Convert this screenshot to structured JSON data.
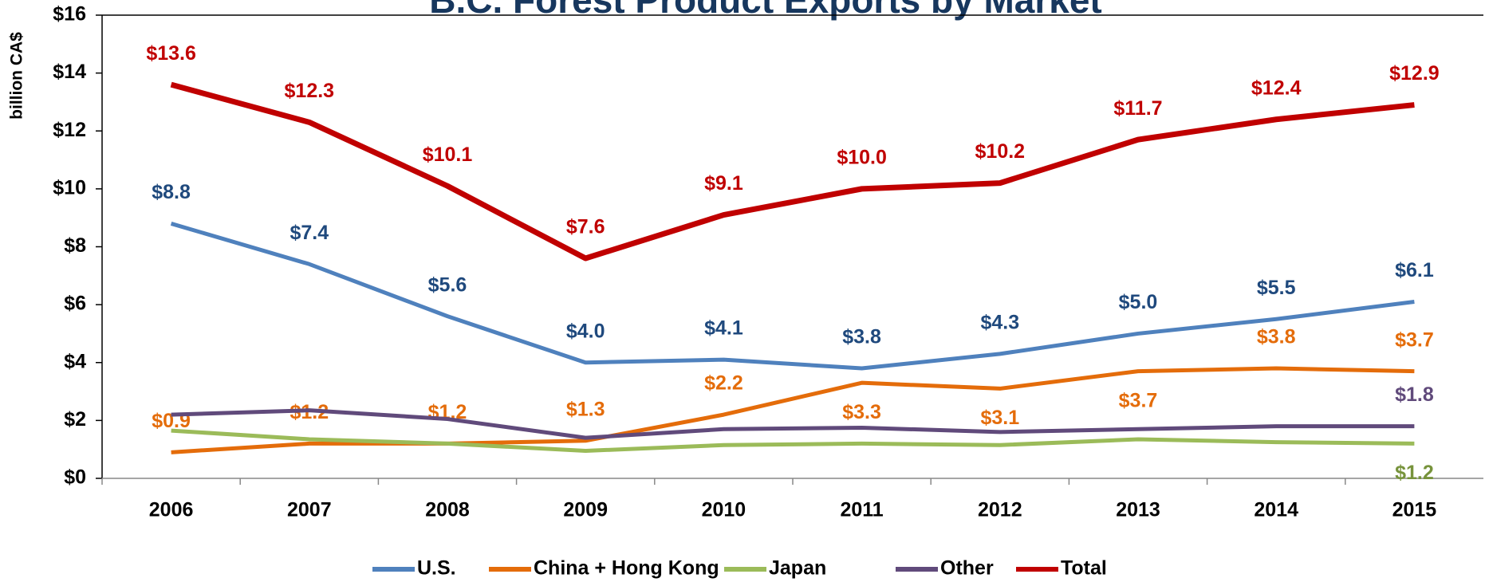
{
  "chart_data": {
    "type": "line",
    "title": "B.C. Forest Product Exports by Market",
    "y_label": "billion CA$",
    "categories": [
      "2006",
      "2007",
      "2008",
      "2009",
      "2010",
      "2011",
      "2012",
      "2013",
      "2014",
      "2015"
    ],
    "ylim": [
      0,
      16
    ],
    "yticks": [
      {
        "value": 0,
        "label": "$0"
      },
      {
        "value": 2,
        "label": "$2"
      },
      {
        "value": 4,
        "label": "$4"
      },
      {
        "value": 6,
        "label": "$6"
      },
      {
        "value": 8,
        "label": "$8"
      },
      {
        "value": 10,
        "label": "$10"
      },
      {
        "value": 12,
        "label": "$12"
      },
      {
        "value": 14,
        "label": "$14"
      },
      {
        "value": 16,
        "label": "$16"
      }
    ],
    "legend": "bottom",
    "series": [
      {
        "name": "U.S.",
        "color": "#4f81bd",
        "label_color": "#1f497d",
        "values": [
          8.8,
          7.4,
          5.6,
          4.0,
          4.1,
          3.8,
          4.3,
          5.0,
          5.5,
          6.1
        ],
        "value_labels": [
          "$8.8",
          "$7.4",
          "$5.6",
          "$4.0",
          "$4.1",
          "$3.8",
          "$4.3",
          "$5.0",
          "$5.5",
          "$6.1"
        ]
      },
      {
        "name": "China + Hong Kong",
        "color": "#e46c0a",
        "label_color": "#e46c0a",
        "values": [
          0.9,
          1.2,
          1.2,
          1.3,
          2.2,
          3.3,
          3.1,
          3.7,
          3.8,
          3.7
        ],
        "value_labels": [
          "$0.9",
          "$1.2",
          "$1.2",
          "$1.3",
          "$2.2",
          "$3.3",
          "$3.1",
          "$3.7",
          "$3.8",
          "$3.7"
        ]
      },
      {
        "name": "Japan",
        "color": "#9bbb59",
        "label_color": "#77933c",
        "values": [
          1.65,
          1.35,
          1.2,
          0.95,
          1.15,
          1.2,
          1.15,
          1.35,
          1.25,
          1.2
        ],
        "value_labels": [
          null,
          null,
          null,
          null,
          null,
          null,
          null,
          null,
          null,
          "$1.2"
        ]
      },
      {
        "name": "Other",
        "color": "#604a7b",
        "label_color": "#604a7b",
        "values": [
          2.2,
          2.35,
          2.05,
          1.4,
          1.7,
          1.75,
          1.6,
          1.7,
          1.8,
          1.8
        ],
        "value_labels": [
          null,
          null,
          null,
          null,
          null,
          null,
          null,
          null,
          null,
          "$1.8"
        ]
      },
      {
        "name": "Total",
        "color": "#c00000",
        "label_color": "#c00000",
        "values": [
          13.6,
          12.3,
          10.1,
          7.6,
          9.1,
          10.0,
          10.2,
          11.7,
          12.4,
          12.9
        ],
        "value_labels": [
          "$13.6",
          "$12.3",
          "$10.1",
          "$7.6",
          "$9.1",
          "$10.0",
          "$10.2",
          "$11.7",
          "$12.4",
          "$12.9"
        ]
      }
    ]
  }
}
